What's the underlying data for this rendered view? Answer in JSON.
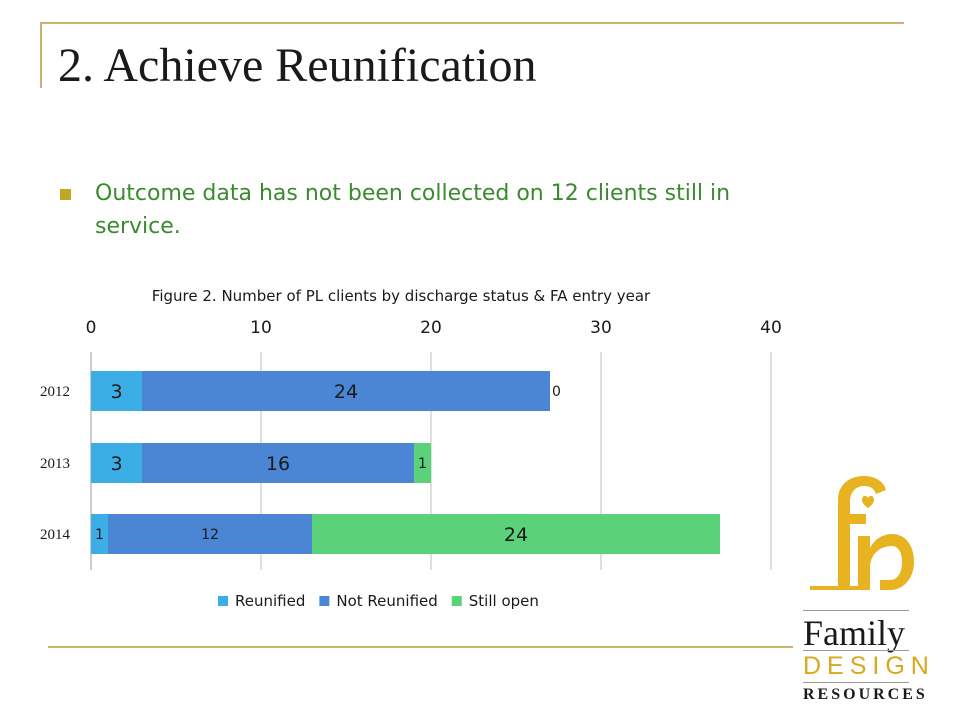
{
  "slide": {
    "title": "2. Achieve Reunification",
    "bullet": "Outcome data has not been collected on 12 clients still in service."
  },
  "logo": {
    "word1": "Family",
    "word2": "DESIGN",
    "word3": "RESOURCES",
    "colors": {
      "gold": "#e8b320",
      "dark": "#1a1a1a"
    }
  },
  "chart_data": {
    "type": "bar",
    "orientation": "horizontal",
    "stacked": true,
    "title": "Figure 2. Number of PL clients by discharge status & FA entry year",
    "categories": [
      "2012",
      "2013",
      "2014"
    ],
    "series": [
      {
        "name": "Reunified",
        "values": [
          3,
          3,
          1
        ],
        "color": "#3caee6"
      },
      {
        "name": "Not Reunified",
        "values": [
          24,
          16,
          12
        ],
        "color": "#4a86d4"
      },
      {
        "name": "Still open",
        "values": [
          0,
          1,
          24
        ],
        "color": "#5bd17a"
      }
    ],
    "xlim": [
      0,
      40
    ],
    "xticks": [
      "0",
      "10",
      "20",
      "30",
      "40"
    ],
    "xaxis_position": "top",
    "grid": true,
    "legend_position": "bottom"
  }
}
